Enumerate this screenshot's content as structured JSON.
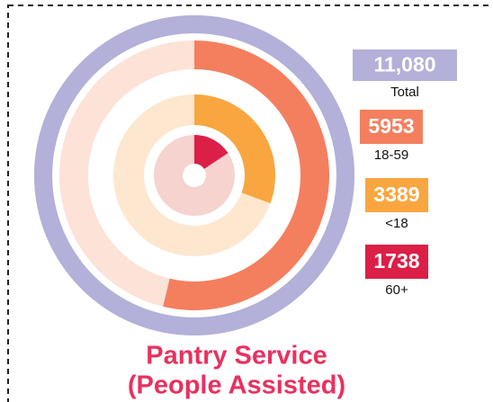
{
  "chart_data": {
    "type": "radial_bar",
    "title_lines": [
      "Pantry Service",
      "(People Assisted)"
    ],
    "title_color": "#e8315f",
    "series": [
      {
        "name": "Total",
        "value": 11080,
        "value_label": "11,080",
        "color": "#b3b0d9",
        "track_color": "#b3b0d9"
      },
      {
        "name": "18-59",
        "value": 5953,
        "color": "#f47f5e",
        "track_color": "#fde2d8"
      },
      {
        "name": "<18",
        "value": 3389,
        "color": "#f9a640",
        "track_color": "#fde7cf"
      },
      {
        "name": "60+",
        "value": 1738,
        "color": "#dc1f47",
        "track_color": "#f6d3cf"
      }
    ]
  }
}
